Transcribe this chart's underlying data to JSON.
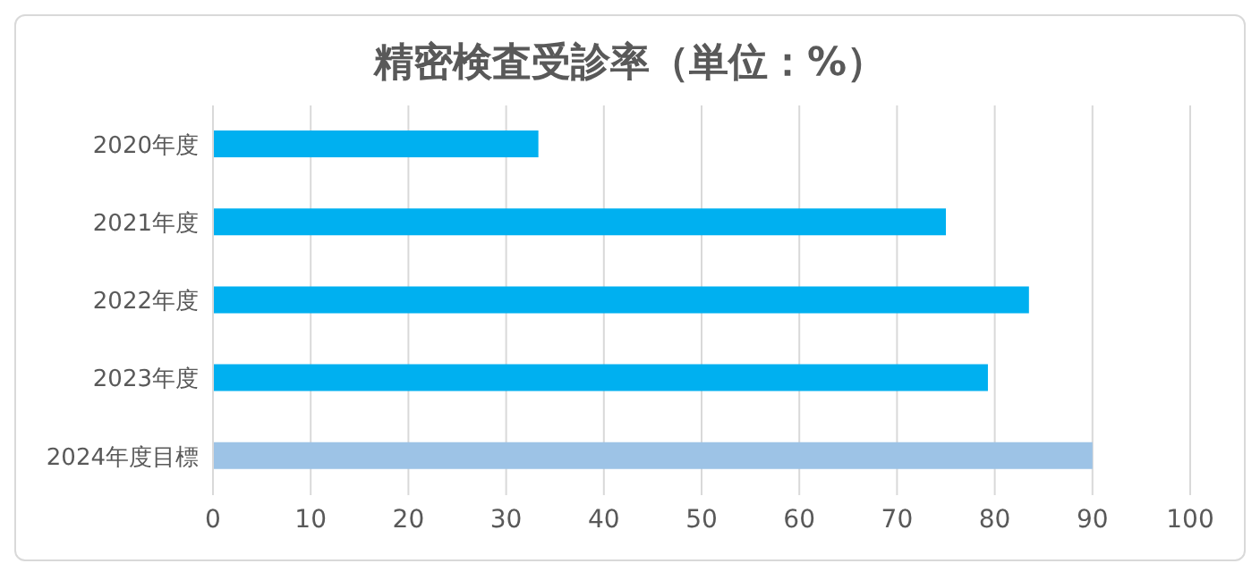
{
  "chart_data": {
    "type": "bar",
    "orientation": "horizontal",
    "title": "精密検査受診率（単位：%）",
    "categories": [
      "2020年度",
      "2021年度",
      "2022年度",
      "2023年度",
      "2024年度目標"
    ],
    "values": [
      33.3,
      75.0,
      83.5,
      79.3,
      90
    ],
    "colors": [
      "#00b0f0",
      "#00b0f0",
      "#00b0f0",
      "#00b0f0",
      "#9dc3e6"
    ],
    "xlim": [
      0,
      100
    ],
    "xticks": [
      0,
      10,
      20,
      30,
      40,
      50,
      60,
      70,
      80,
      90,
      100
    ],
    "grid": "x"
  }
}
